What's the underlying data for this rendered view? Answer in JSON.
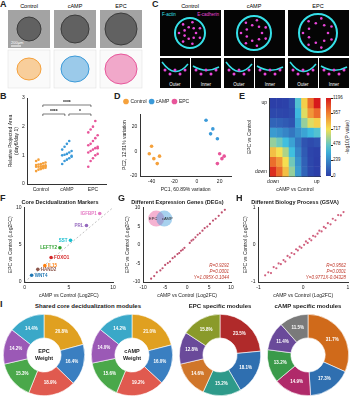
{
  "images": [
    {
      "panel_label": "A",
      "columns": [
        "Control",
        "cAMP",
        "EPC"
      ],
      "colors": [
        "#f5a13c",
        "#3b9ad9",
        "#e8559a"
      ],
      "scale_bar": "200μm"
    },
    {
      "panel_label": "C",
      "columns": [
        "Control",
        "cAMP",
        "EPC"
      ],
      "stains": [
        "F-actin",
        "E-cadherin"
      ],
      "stain_colors": [
        "#35e0e8",
        "#e845d8"
      ],
      "regions": [
        "Outer",
        "Inner"
      ]
    }
  ],
  "chart_data": [
    {
      "panel_label": "B",
      "type": "strip",
      "y_label": "Relative Projected Area (day6/day 1)",
      "categories": [
        "Control",
        "cAMP",
        "EPC"
      ],
      "colors": [
        "#f5a13c",
        "#3b9ad9",
        "#e8559a"
      ],
      "values": [
        [
          0.45,
          0.5,
          0.52,
          0.55,
          0.57,
          0.6,
          0.6,
          0.62,
          0.63,
          0.65,
          0.66,
          0.68,
          0.7,
          0.72,
          0.75,
          0.8,
          0.85,
          0.55,
          0.58,
          0.62
        ],
        [
          0.7,
          0.8,
          0.85,
          0.9,
          0.95,
          1.0,
          1.02,
          1.05,
          1.1,
          1.15,
          1.2,
          1.3,
          1.4,
          1.5,
          0.98
        ],
        [
          0.6,
          0.8,
          0.9,
          1.0,
          1.05,
          1.1,
          1.15,
          1.2,
          1.25,
          1.3,
          1.35,
          1.4,
          1.5,
          1.6,
          1.7,
          1.8,
          1.9,
          2.0,
          2.2,
          1.25
        ]
      ],
      "ylim": [
        0,
        3
      ],
      "yticks": [
        0,
        1,
        2,
        3
      ],
      "annotations": [
        "****",
        "****",
        "*"
      ],
      "grid": false
    },
    {
      "panel_label": "D",
      "type": "scatter",
      "x_label": "PC1, 60.89% variation",
      "y_label": "PC2, 12.91% variation",
      "series": [
        {
          "name": "Control",
          "color": "#f5a13c",
          "x": [
            -42,
            -38,
            -35,
            -40,
            -33
          ],
          "values": [
            -2,
            -6,
            -10,
            4,
            -4
          ]
        },
        {
          "name": "cAMP",
          "color": "#3b9ad9",
          "x": [
            8,
            14,
            18,
            12
          ],
          "values": [
            25,
            18,
            10,
            14
          ]
        },
        {
          "name": "EPC",
          "color": "#e8559a",
          "x": [
            20,
            22,
            18,
            24
          ],
          "values": [
            -2,
            -6,
            -10,
            -4
          ]
        }
      ],
      "xlim": [
        -50,
        30
      ],
      "xticks": [
        -40,
        -20,
        0,
        20
      ],
      "ylim": [
        -20,
        30
      ],
      "yticks": [
        -20,
        0,
        20
      ],
      "legend": "upper left",
      "grid": false
    },
    {
      "panel_label": "E",
      "type": "heatmap",
      "x_label": "cAMP vs Control",
      "y_label": "EPC vs Control",
      "categories": [
        "down",
        null,
        null,
        null,
        null,
        null,
        null,
        "up"
      ],
      "y_categories": [
        "down",
        null,
        null,
        null,
        null,
        null,
        null,
        "up"
      ],
      "cells": [
        [
          1150,
          1000,
          800,
          560,
          300,
          120,
          30,
          0
        ],
        [
          1000,
          900,
          720,
          500,
          270,
          110,
          25,
          0
        ],
        [
          800,
          720,
          600,
          420,
          230,
          90,
          20,
          5
        ],
        [
          560,
          500,
          420,
          320,
          180,
          70,
          40,
          60
        ],
        [
          300,
          270,
          230,
          180,
          260,
          330,
          400,
          450
        ],
        [
          120,
          110,
          90,
          70,
          330,
          560,
          680,
          760
        ],
        [
          30,
          25,
          20,
          40,
          400,
          680,
          900,
          1000
        ],
        [
          0,
          0,
          5,
          60,
          450,
          760,
          1000,
          1196
        ]
      ],
      "colorbar": {
        "range": [
          0,
          1196
        ],
        "ticks": [
          0,
          239,
          478,
          717,
          957,
          1196
        ],
        "label": "-log10(P value)"
      }
    },
    {
      "panel_label": "F",
      "type": "scatter",
      "title": "Core Decidualization Markers",
      "x_label": "cAMP vs Control (Log2FC)",
      "y_label": "EPC vs Control (Log2FC)",
      "points": [
        {
          "label": "IGFBP1",
          "x": 8.5,
          "y": 9.2,
          "color": "#e377c2"
        },
        {
          "label": "PRL",
          "x": 7.0,
          "y": 7.6,
          "color": "#9467bd"
        },
        {
          "label": "SST",
          "x": 5.2,
          "y": 5.6,
          "color": "#17becf"
        },
        {
          "label": "LEFTY2",
          "x": 4.0,
          "y": 4.6,
          "color": "#2ca02c"
        },
        {
          "label": "FOXO1",
          "x": 3.0,
          "y": 3.3,
          "color": "#d62728"
        },
        {
          "label": "IL15",
          "x": 2.3,
          "y": 2.2,
          "color": "#ff7f0e"
        },
        {
          "label": "HAND2",
          "x": 1.5,
          "y": 1.7,
          "color": "#8c564b"
        },
        {
          "label": "WNT4",
          "x": 0.8,
          "y": 0.9,
          "color": "#1f77b4"
        }
      ],
      "xlim": [
        0,
        10
      ],
      "xticks": [
        0,
        5,
        10
      ],
      "ylim": [
        0,
        10
      ],
      "yticks": [
        0,
        5,
        10
      ],
      "grid": false
    },
    {
      "panel_label": "G",
      "type": "scatter",
      "title": "Different Expression Genes (DEGs)",
      "x_label": "cAMP vs Control (Log2FC)",
      "y_label": "EPC vs Control (Log2FC)",
      "color": "#c0506e",
      "x": [
        -8.2,
        -7.5,
        -6.9,
        -6.1,
        -5.6,
        -5.0,
        -4.4,
        -3.9,
        -3.3,
        -2.8,
        -2.2,
        -1.8,
        -1.4,
        -1.0,
        -0.6,
        0.6,
        1.0,
        1.4,
        1.9,
        2.4,
        2.9,
        3.5,
        4.0,
        4.6,
        5.2,
        5.9,
        6.5,
        7.2,
        7.9,
        8.6
      ],
      "values": [
        -9.1,
        -8.4,
        -7.4,
        -6.9,
        -6.3,
        -5.4,
        -4.9,
        -4.5,
        -3.6,
        -3.2,
        -2.5,
        -2.2,
        -1.6,
        -1.3,
        -0.8,
        0.5,
        1.1,
        1.4,
        2.0,
        2.7,
        3.1,
        3.8,
        4.5,
        4.9,
        5.6,
        6.5,
        7.0,
        7.8,
        8.7,
        9.4
      ],
      "xlim": [
        -10,
        10
      ],
      "xticks": [
        -10,
        -5,
        0,
        5,
        10
      ],
      "ylim": [
        -10,
        10
      ],
      "yticks": [
        -10,
        -5,
        0,
        5,
        10
      ],
      "annotations": [
        "R=0.9292",
        "P=0.0001",
        "Y=1.095X-0.1044"
      ],
      "venn": [
        "EPC",
        "cAMP"
      ],
      "grid": false
    },
    {
      "panel_label": "H",
      "type": "scatter",
      "title": "Different Biology Process (GSVA)",
      "x_label": "cAMP vs Control (Log2FC)",
      "y_label": "EPC vs Control (Log2FC)",
      "color": "#d0607e",
      "x": [
        -0.85,
        -0.78,
        -0.72,
        -0.66,
        -0.6,
        -0.55,
        -0.5,
        -0.44,
        -0.4,
        -0.35,
        -0.3,
        -0.26,
        -0.2,
        -0.16,
        -0.12,
        -0.08,
        -0.04,
        0.02,
        0.06,
        0.1,
        0.14,
        0.18,
        0.22,
        0.27,
        0.32,
        0.36,
        0.41,
        0.46,
        0.5,
        0.55,
        0.61,
        0.66,
        0.72,
        0.78,
        0.84,
        0.9
      ],
      "values": [
        -0.82,
        -0.74,
        -0.76,
        -0.6,
        -0.63,
        -0.5,
        -0.52,
        -0.41,
        -0.45,
        -0.3,
        -0.34,
        -0.22,
        -0.25,
        -0.12,
        -0.15,
        -0.05,
        -0.08,
        0,
        0.09,
        0.05,
        0.16,
        0.12,
        0.24,
        0.22,
        0.3,
        0.38,
        0.36,
        0.48,
        0.45,
        0.58,
        0.55,
        0.7,
        0.66,
        0.8,
        0.79,
        0.88
      ],
      "xlim": [
        -1,
        1
      ],
      "xticks": [
        -1,
        0,
        1
      ],
      "ylim": [
        -1,
        1
      ],
      "yticks": [
        -1,
        0,
        1
      ],
      "annotations": [
        "R=0.9562",
        "P=0.0001",
        "Y=0.9771X-0.04328"
      ],
      "grid": false
    },
    {
      "panel_label": "I",
      "type": "doughnut",
      "title": "Shared core decidualization modules",
      "center": "EPC Weight",
      "values": [
        20.8,
        16.4,
        18.9,
        15.3,
        14.2,
        14.4
      ],
      "value_labels": [
        "20.8%",
        "16.4%",
        "18.9%",
        "15.3%",
        "14.2%",
        "14.4%"
      ],
      "colors": [
        "#e0a020",
        "#3a7fc1",
        "#e05a4f",
        "#4aa84a",
        "#9b59b6",
        "#3aa8c8"
      ]
    },
    {
      "type": "doughnut",
      "center": "cAMP Weight",
      "values": [
        21.0,
        16.0,
        19.2,
        15.6,
        14.0,
        14.2
      ],
      "value_labels": [
        "21.0%",
        "16.0%",
        "19.2%",
        "15.6%",
        "14.0%",
        "14.2%"
      ],
      "colors": [
        "#e0a020",
        "#3a7fc1",
        "#e05a4f",
        "#4aa84a",
        "#9b59b6",
        "#3aa8c8"
      ]
    },
    {
      "type": "doughnut",
      "title": "EPC specific modules",
      "values": [
        23.5,
        18.1,
        15.2,
        14.6,
        12.8,
        15.8
      ],
      "value_labels": [
        "23.5%",
        "18.1%",
        "15.2%",
        "14.6%",
        "12.8%",
        "15.8%"
      ],
      "colors": [
        "#b02a2a",
        "#2f6fb0",
        "#2e9a8a",
        "#d0762a",
        "#6a4a9a",
        "#8a9a2a"
      ]
    },
    {
      "type": "doughnut",
      "title": "cAMP specific modules",
      "values": [
        31.7,
        17.3,
        14.9,
        13.2,
        11.4,
        11.5
      ],
      "value_labels": [
        "31.7%",
        "17.3%",
        "14.9%",
        "13.2%",
        "11.4%",
        "11.5%"
      ],
      "colors": [
        "#d06a1a",
        "#2f6fb0",
        "#b02a6a",
        "#3a9a4a",
        "#6a4a9a",
        "#7a7a7a"
      ]
    }
  ]
}
